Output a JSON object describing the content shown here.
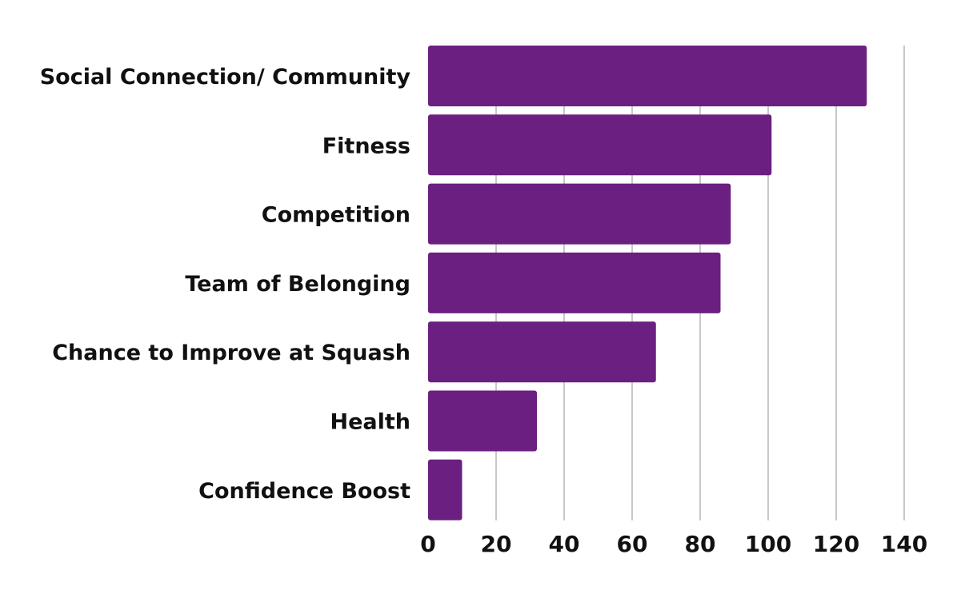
{
  "chart_data": {
    "type": "bar",
    "orientation": "horizontal",
    "title": "",
    "xlabel": "",
    "ylabel": "",
    "categories": [
      "Social Connection/ Community",
      "Fitness",
      "Competition",
      "Team of Belonging",
      "Chance to Improve at Squash",
      "Health",
      "Confidence Boost"
    ],
    "values": [
      129,
      101,
      89,
      86,
      67,
      32,
      10
    ],
    "xlim": [
      0,
      140
    ],
    "xticks": [
      "0",
      "20",
      "40",
      "60",
      "80",
      "100",
      "120",
      "140"
    ],
    "xtick_values": [
      0,
      20,
      40,
      60,
      80,
      100,
      120,
      140
    ],
    "grid": true,
    "legend": "none",
    "colors": {
      "bar": "#6b1f80",
      "grid": "#c8c8c8",
      "text": "#111111"
    }
  }
}
